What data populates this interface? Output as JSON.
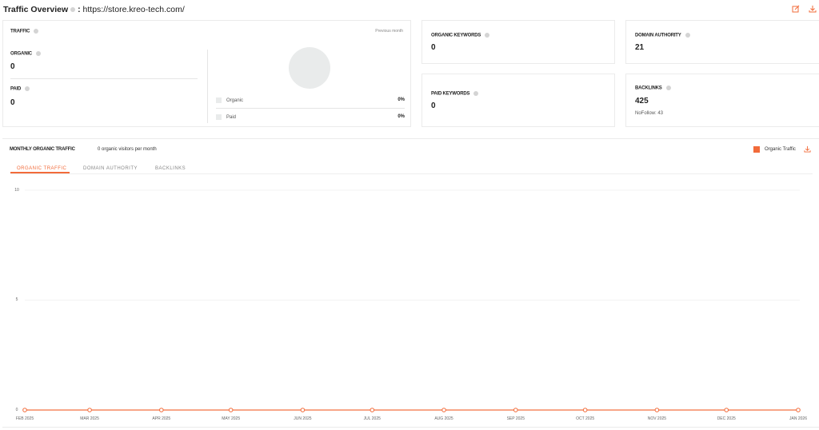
{
  "header": {
    "title": "Traffic Overview",
    "separator": ":",
    "url": "https://store.kreo-tech.com/",
    "icons": [
      "edit-icon",
      "download-icon"
    ]
  },
  "traffic": {
    "label": "TRAFFIC",
    "period": "Previous month",
    "organic_label": "ORGANIC",
    "organic_value": "0",
    "paid_label": "PAID",
    "paid_value": "0",
    "legend": [
      {
        "label": "Organic",
        "value": "0%"
      },
      {
        "label": "Paid",
        "value": "0%"
      }
    ]
  },
  "organic_keywords": {
    "label": "ORGANIC KEYWORDS",
    "value": "0"
  },
  "domain_authority": {
    "label": "DOMAIN AUTHORITY",
    "value": "21"
  },
  "paid_keywords": {
    "label": "PAID KEYWORDS",
    "value": "0"
  },
  "backlinks": {
    "label": "BACKLINKS",
    "value": "425",
    "nofollow": "NoFollow: 43"
  },
  "monthly": {
    "title": "MONTHLY ORGANIC TRAFFIC",
    "subtitle": "0 organic visitors per month",
    "legend": "Organic Traffic",
    "tabs": [
      "ORGANIC TRAFFIC",
      "DOMAIN AUTHORITY",
      "BACKLINKS"
    ],
    "active_tab": 0
  },
  "colors": {
    "accent": "#f26b3a"
  },
  "chart_data": {
    "type": "line",
    "x": [
      "FEB 2025",
      "MAR 2025",
      "APR 2025",
      "MAY 2025",
      "JUN 2025",
      "JUL 2025",
      "AUG 2025",
      "SEP 2025",
      "OCT 2025",
      "NOV 2025",
      "DEC 2025",
      "JAN 2026"
    ],
    "series": [
      {
        "name": "Organic Traffic",
        "values": [
          0,
          0,
          0,
          0,
          0,
          0,
          0,
          0,
          0,
          0,
          0,
          0
        ]
      }
    ],
    "yticks": [
      "0",
      "5",
      "10"
    ],
    "ylim": [
      0,
      10
    ],
    "grid": true,
    "legend": "top-right"
  }
}
